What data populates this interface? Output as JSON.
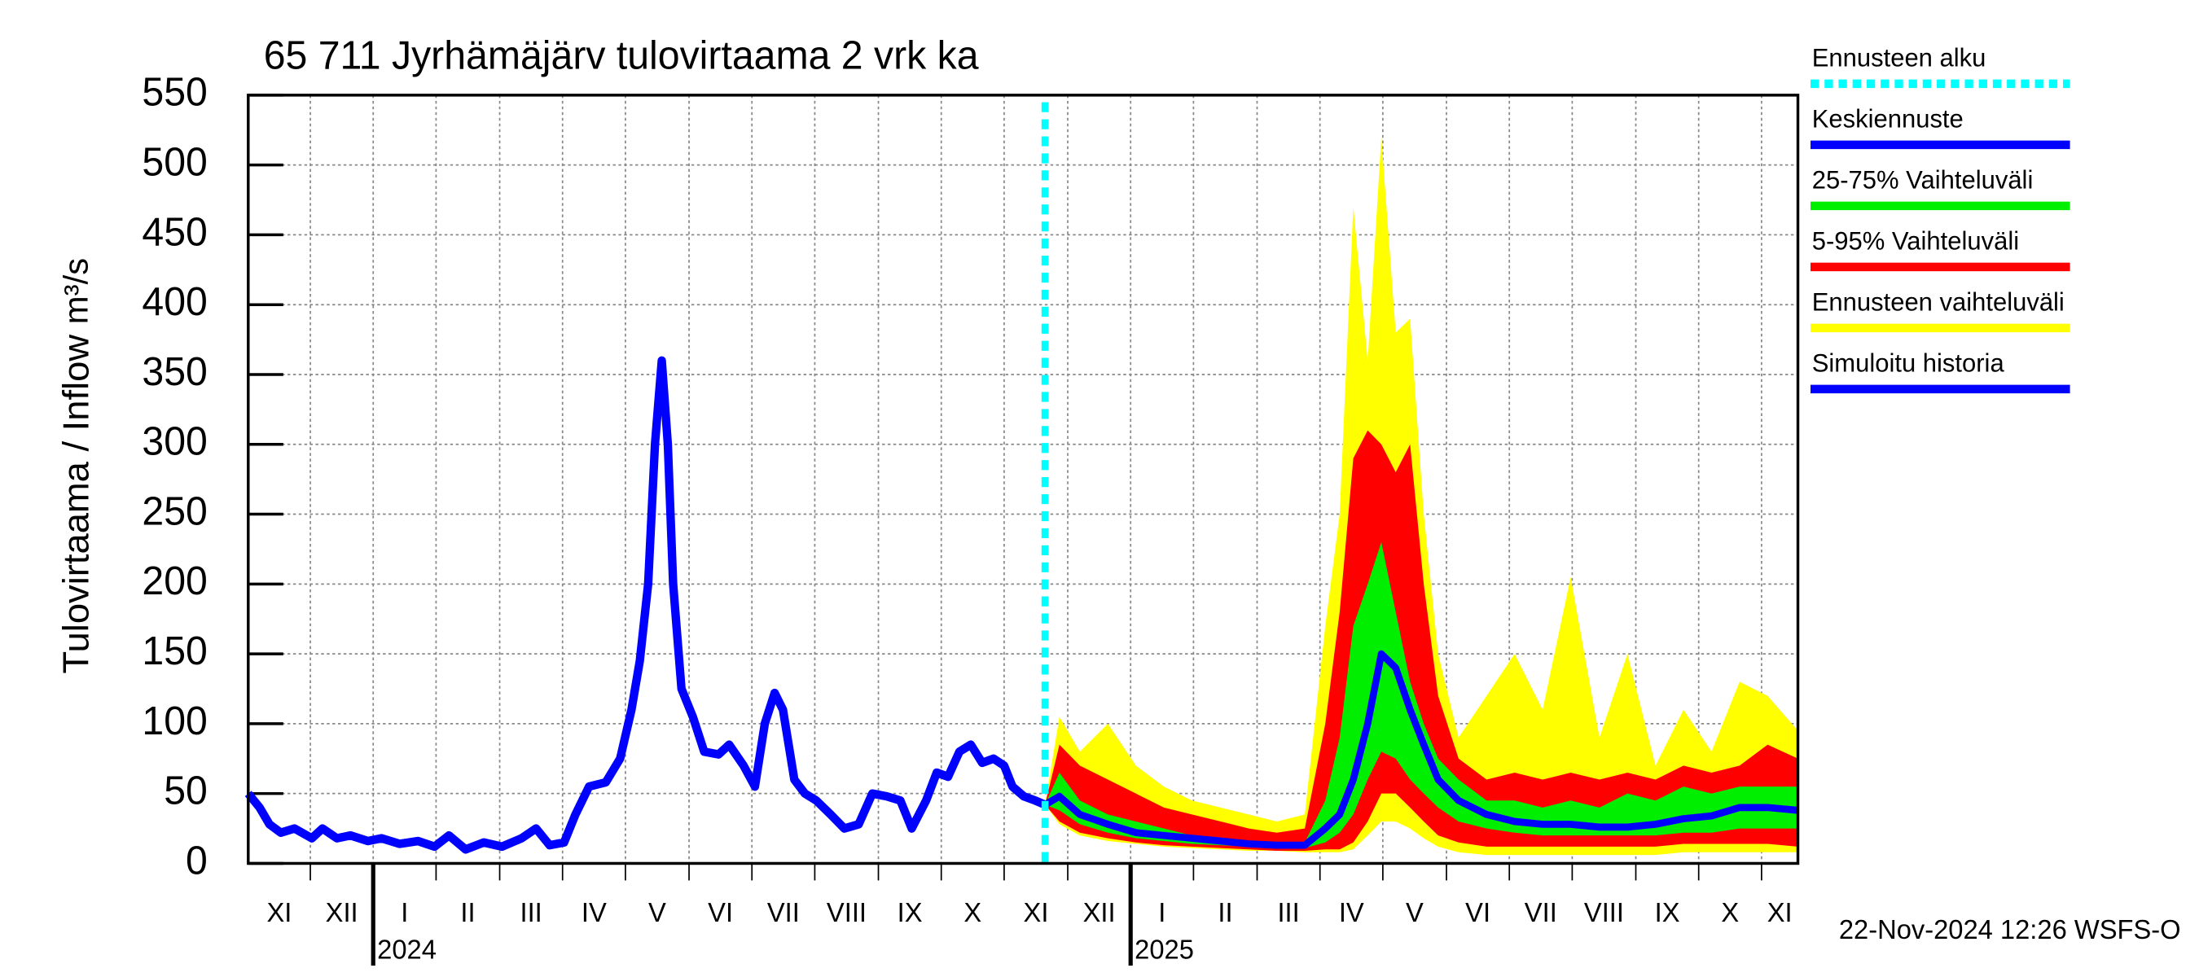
{
  "chart_data": {
    "type": "line",
    "title": "65 711 Jyrhämäjärv tulovirtaama 2 vrk ka",
    "y_label": "Tulovirtaama / Inflow",
    "y_unit": "m³/s",
    "footer": "22-Nov-2024 12:26 WSFS-O",
    "xlim": [
      2023.835,
      2025.881
    ],
    "ylim": [
      0,
      550
    ],
    "yticks": [
      0,
      50,
      100,
      150,
      200,
      250,
      300,
      350,
      400,
      450,
      500,
      550
    ],
    "grid": true,
    "xticks": [
      {
        "value": 2024,
        "label": "2024"
      },
      {
        "value": 2025,
        "label": "2025"
      }
    ],
    "month_ticks": [
      {
        "value": 2023.833,
        "label": "XI"
      },
      {
        "value": 2023.917,
        "label": "XII"
      },
      {
        "value": 2024.0,
        "label": "I"
      },
      {
        "value": 2024.083,
        "label": "II"
      },
      {
        "value": 2024.167,
        "label": "III"
      },
      {
        "value": 2024.25,
        "label": "IV"
      },
      {
        "value": 2024.333,
        "label": "V"
      },
      {
        "value": 2024.417,
        "label": "VI"
      },
      {
        "value": 2024.5,
        "label": "VII"
      },
      {
        "value": 2024.583,
        "label": "VIII"
      },
      {
        "value": 2024.667,
        "label": "IX"
      },
      {
        "value": 2024.75,
        "label": "X"
      },
      {
        "value": 2024.833,
        "label": "XI"
      },
      {
        "value": 2024.917,
        "label": "XII"
      },
      {
        "value": 2025.0,
        "label": "I"
      },
      {
        "value": 2025.083,
        "label": "II"
      },
      {
        "value": 2025.167,
        "label": "III"
      },
      {
        "value": 2025.25,
        "label": "IV"
      },
      {
        "value": 2025.333,
        "label": "V"
      },
      {
        "value": 2025.417,
        "label": "VI"
      },
      {
        "value": 2025.5,
        "label": "VII"
      },
      {
        "value": 2025.583,
        "label": "VIII"
      },
      {
        "value": 2025.667,
        "label": "IX"
      },
      {
        "value": 2025.75,
        "label": "X"
      },
      {
        "value": 2025.833,
        "label": "XI"
      }
    ],
    "forecast_start": {
      "name": "Ennusteen alku",
      "x": 2024.887,
      "color": "#00ffff"
    },
    "forecast_x": [
      2024.887,
      2024.906,
      2024.933,
      2024.97,
      2025.007,
      2025.044,
      2025.081,
      2025.119,
      2025.156,
      2025.193,
      2025.23,
      2025.257,
      2025.276,
      2025.294,
      2025.313,
      2025.331,
      2025.35,
      2025.369,
      2025.387,
      2025.406,
      2025.433,
      2025.47,
      2025.507,
      2025.544,
      2025.581,
      2025.619,
      2025.656,
      2025.693,
      2025.73,
      2025.767,
      2025.804,
      2025.841,
      2025.881
    ],
    "bands": [
      {
        "name": "Ennusteen vaihteluväli",
        "color": "#ffff00",
        "upper": [
          42,
          105,
          80,
          100,
          70,
          55,
          45,
          40,
          35,
          30,
          35,
          170,
          250,
          470,
          360,
          520,
          380,
          390,
          250,
          150,
          90,
          120,
          150,
          110,
          205,
          90,
          150,
          70,
          110,
          80,
          130,
          120,
          95
        ],
        "lower": [
          42,
          28,
          20,
          16,
          14,
          12,
          11,
          10,
          9,
          9,
          8,
          8,
          8,
          10,
          20,
          30,
          30,
          25,
          18,
          12,
          8,
          6,
          6,
          6,
          6,
          6,
          6,
          6,
          8,
          8,
          8,
          8,
          8
        ]
      },
      {
        "name": "5-95% Vaihteluväli",
        "color": "#ff0000",
        "upper": [
          42,
          85,
          70,
          60,
          50,
          40,
          35,
          30,
          25,
          22,
          25,
          100,
          180,
          290,
          310,
          300,
          280,
          300,
          200,
          120,
          75,
          60,
          65,
          60,
          65,
          60,
          65,
          60,
          70,
          65,
          70,
          85,
          75
        ],
        "lower": [
          42,
          30,
          22,
          18,
          15,
          13,
          12,
          11,
          10,
          9,
          9,
          10,
          10,
          15,
          30,
          50,
          50,
          40,
          30,
          20,
          15,
          12,
          12,
          12,
          12,
          12,
          12,
          12,
          14,
          14,
          14,
          14,
          12
        ]
      },
      {
        "name": "25-75% Vaihteluväli",
        "color": "#00ee00",
        "upper": [
          42,
          65,
          45,
          35,
          30,
          25,
          20,
          18,
          15,
          13,
          15,
          45,
          90,
          170,
          200,
          230,
          180,
          130,
          100,
          75,
          60,
          45,
          45,
          40,
          45,
          40,
          50,
          45,
          55,
          50,
          55,
          55,
          55
        ],
        "lower": [
          42,
          38,
          28,
          22,
          18,
          16,
          14,
          13,
          12,
          11,
          11,
          15,
          22,
          35,
          60,
          80,
          75,
          60,
          50,
          40,
          30,
          25,
          22,
          20,
          20,
          20,
          20,
          20,
          22,
          22,
          25,
          25,
          25
        ]
      }
    ],
    "series": [
      {
        "name": "Simuloitu historia",
        "color": "#0000ff",
        "x": [
          2023.835,
          2023.85,
          2023.863,
          2023.878,
          2023.896,
          2023.919,
          2023.933,
          2023.952,
          2023.97,
          2023.993,
          2024.011,
          2024.035,
          2024.059,
          2024.081,
          2024.1,
          2024.122,
          2024.146,
          2024.17,
          2024.196,
          2024.215,
          2024.233,
          2024.252,
          2024.267,
          2024.285,
          2024.307,
          2024.326,
          2024.341,
          2024.352,
          2024.363,
          2024.372,
          2024.381,
          2024.389,
          2024.396,
          2024.407,
          2024.422,
          2024.437,
          2024.456,
          2024.47,
          2024.489,
          2024.504,
          2024.517,
          2024.53,
          2024.541,
          2024.556,
          2024.57,
          2024.585,
          2024.604,
          2024.622,
          2024.641,
          2024.659,
          2024.678,
          2024.696,
          2024.711,
          2024.73,
          2024.744,
          2024.759,
          2024.774,
          2024.789,
          2024.804,
          2024.819,
          2024.833,
          2024.844,
          2024.859,
          2024.874,
          2024.887
        ],
        "values": [
          50,
          40,
          28,
          22,
          25,
          18,
          25,
          18,
          20,
          16,
          18,
          14,
          16,
          12,
          20,
          10,
          15,
          12,
          18,
          25,
          13,
          15,
          35,
          55,
          58,
          75,
          110,
          145,
          200,
          300,
          360,
          300,
          200,
          125,
          105,
          80,
          78,
          85,
          70,
          55,
          100,
          122,
          110,
          60,
          50,
          45,
          35,
          25,
          28,
          50,
          48,
          45,
          25,
          45,
          65,
          62,
          80,
          85,
          72,
          75,
          70,
          55,
          48,
          45,
          42
        ]
      },
      {
        "name": "Keskiennuste",
        "color": "#0000ff",
        "values": [
          42,
          48,
          35,
          28,
          22,
          20,
          18,
          16,
          14,
          13,
          13,
          25,
          35,
          60,
          100,
          150,
          140,
          110,
          85,
          60,
          45,
          35,
          30,
          28,
          28,
          26,
          26,
          28,
          32,
          34,
          40,
          40,
          38
        ]
      }
    ]
  }
}
